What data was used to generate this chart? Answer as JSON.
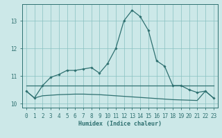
{
  "x": [
    0,
    1,
    2,
    3,
    4,
    5,
    6,
    7,
    8,
    9,
    10,
    11,
    12,
    13,
    14,
    15,
    16,
    17,
    18,
    19,
    20,
    21,
    22,
    23
  ],
  "y_upper": [
    10.45,
    10.2,
    10.65,
    10.95,
    11.05,
    11.2,
    11.2,
    11.25,
    11.3,
    11.1,
    11.45,
    12.0,
    13.0,
    13.38,
    13.15,
    12.65,
    11.55,
    11.35,
    10.65,
    10.65,
    10.5,
    10.4,
    10.45,
    10.2
  ],
  "y_mid": [
    10.65,
    10.65,
    10.65,
    10.65,
    10.65,
    10.65,
    10.65,
    10.65,
    10.65,
    10.65,
    10.65,
    10.65,
    10.65,
    10.65,
    10.65,
    10.65,
    10.65,
    10.65,
    10.65,
    10.65,
    10.65,
    10.65,
    10.65,
    10.65
  ],
  "y_lower": [
    10.45,
    10.2,
    10.28,
    10.3,
    10.32,
    10.33,
    10.34,
    10.34,
    10.33,
    10.32,
    10.3,
    10.28,
    10.26,
    10.24,
    10.22,
    10.2,
    10.18,
    10.16,
    10.14,
    10.13,
    10.12,
    10.11,
    10.45,
    10.2
  ],
  "xlabel": "Humidex (Indice chaleur)",
  "ylim": [
    9.85,
    13.6
  ],
  "yticks": [
    10,
    11,
    12,
    13
  ],
  "xticks": [
    0,
    1,
    2,
    3,
    4,
    5,
    6,
    7,
    8,
    9,
    10,
    11,
    12,
    13,
    14,
    15,
    16,
    17,
    18,
    19,
    20,
    21,
    22,
    23
  ],
  "line_color": "#2e7070",
  "bg_color": "#cce8e8",
  "grid_color": "#88c0c0"
}
